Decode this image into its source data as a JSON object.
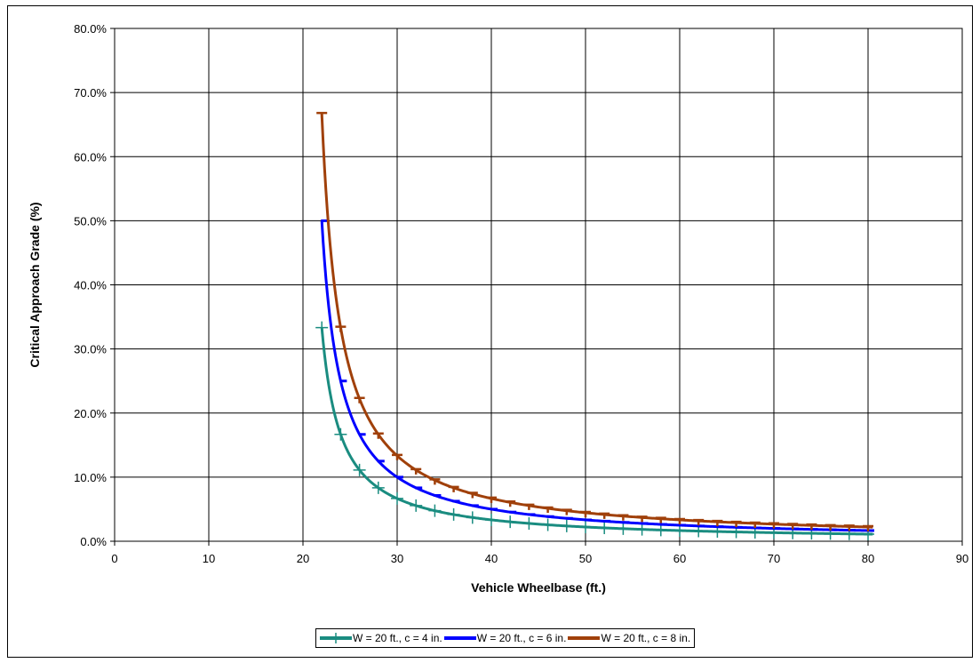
{
  "chart_data": {
    "type": "line",
    "title": "",
    "xlabel": "Vehicle Wheelbase (ft.)",
    "ylabel": "Critical Approach Grade (%)",
    "xlim": [
      0,
      90
    ],
    "ylim": [
      0,
      0.8
    ],
    "x_ticks": [
      "0",
      "10",
      "20",
      "30",
      "40",
      "50",
      "60",
      "70",
      "80",
      "90"
    ],
    "y_ticks": [
      "0.0%",
      "10.0%",
      "20.0%",
      "30.0%",
      "40.0%",
      "50.0%",
      "60.0%",
      "70.0%",
      "80.0%"
    ],
    "grid": true,
    "legend_position": "bottom",
    "series": [
      {
        "name": "W = 20 ft., c = 4 in.",
        "color": "#1a8c80",
        "marker": "plus",
        "x": [
          22,
          24,
          26,
          28,
          30,
          32,
          34,
          36,
          38,
          40,
          42,
          44,
          46,
          48,
          50,
          52,
          54,
          56,
          58,
          60,
          62,
          64,
          66,
          68,
          70,
          72,
          74,
          76,
          78,
          80
        ],
        "y": [
          0.3333,
          0.1667,
          0.1111,
          0.0833,
          0.0667,
          0.0556,
          0.0476,
          0.0417,
          0.037,
          0.0333,
          0.0303,
          0.0278,
          0.0256,
          0.0238,
          0.0222,
          0.0208,
          0.0196,
          0.0185,
          0.0175,
          0.0167,
          0.0159,
          0.0152,
          0.0145,
          0.0139,
          0.0133,
          0.0128,
          0.0123,
          0.0119,
          0.0115,
          0.0111
        ]
      },
      {
        "name": "W = 20 ft., c = 6 in.",
        "color": "#0000ff",
        "marker": "dash",
        "x": [
          22,
          24,
          26,
          28,
          30,
          32,
          34,
          36,
          38,
          40,
          42,
          44,
          46,
          48,
          50,
          52,
          54,
          56,
          58,
          60,
          62,
          64,
          66,
          68,
          70,
          72,
          74,
          76,
          78,
          80
        ],
        "y": [
          0.5,
          0.25,
          0.1667,
          0.125,
          0.1,
          0.0833,
          0.0714,
          0.0625,
          0.0556,
          0.05,
          0.0455,
          0.0417,
          0.0385,
          0.0357,
          0.0333,
          0.0313,
          0.0294,
          0.0278,
          0.0263,
          0.025,
          0.0238,
          0.0227,
          0.0217,
          0.0208,
          0.02,
          0.0192,
          0.0185,
          0.0179,
          0.0172,
          0.0167
        ]
      },
      {
        "name": "W = 20 ft., c = 8 in.",
        "color": "#a0400a",
        "marker": "tee",
        "x": [
          22,
          24,
          26,
          28,
          30,
          32,
          34,
          36,
          38,
          40,
          42,
          44,
          46,
          48,
          50,
          52,
          54,
          56,
          58,
          60,
          62,
          64,
          66,
          68,
          70,
          72,
          74,
          76,
          78,
          80
        ],
        "y": [
          0.6667,
          0.3333,
          0.2222,
          0.1667,
          0.1333,
          0.1111,
          0.0952,
          0.0833,
          0.0741,
          0.0667,
          0.0606,
          0.0556,
          0.0513,
          0.0476,
          0.0444,
          0.0417,
          0.0392,
          0.037,
          0.0351,
          0.0333,
          0.0317,
          0.0303,
          0.029,
          0.0278,
          0.0267,
          0.0256,
          0.0247,
          0.0238,
          0.023,
          0.0222
        ]
      }
    ]
  }
}
